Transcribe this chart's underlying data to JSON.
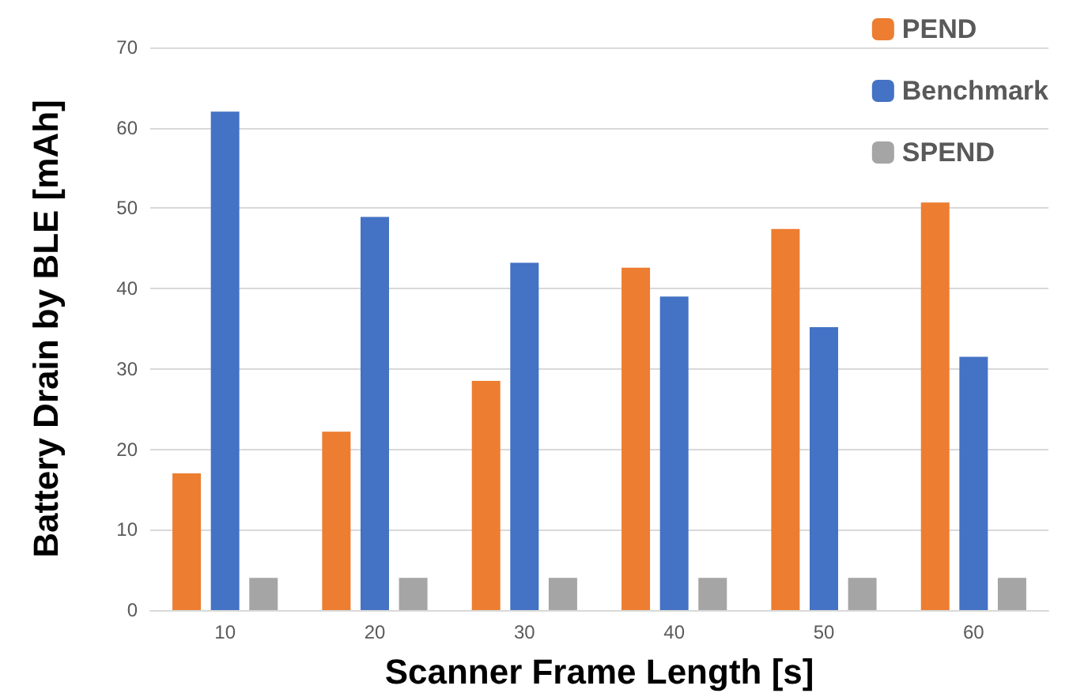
{
  "chart_data": {
    "type": "bar",
    "xlabel": "Scanner Frame Length [s]",
    "ylabel": "Battery Drain by BLE [mAh]",
    "categories": [
      "10",
      "20",
      "30",
      "40",
      "50",
      "60"
    ],
    "series": [
      {
        "name": "PEND",
        "color": "#ed7d31",
        "values": [
          17.0,
          22.2,
          28.5,
          42.6,
          47.4,
          50.7
        ]
      },
      {
        "name": "Benchmark",
        "color": "#4472c4",
        "values": [
          62.0,
          48.9,
          43.2,
          39.0,
          35.2,
          31.5
        ]
      },
      {
        "name": "SPEND",
        "color": "#a5a5a5",
        "values": [
          4.0,
          4.0,
          4.0,
          4.0,
          4.0,
          4.0
        ]
      }
    ],
    "ylim": [
      0,
      70
    ],
    "yticks": [
      0,
      10,
      20,
      30,
      40,
      50,
      60,
      70
    ],
    "grid": "y",
    "legend": "top right"
  }
}
